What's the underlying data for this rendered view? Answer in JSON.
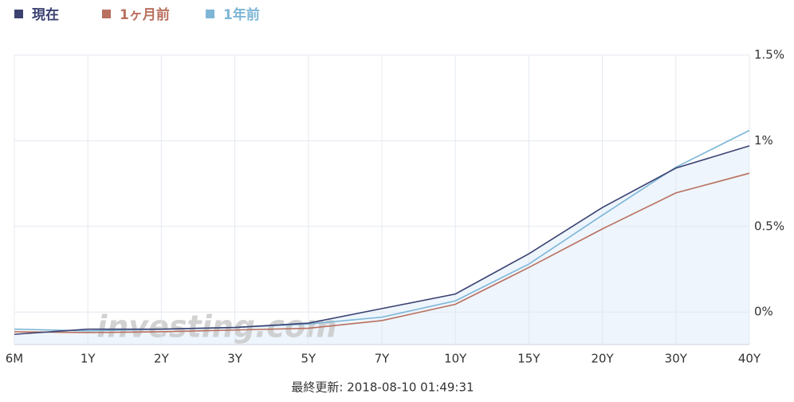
{
  "chart_data": {
    "type": "line",
    "categories": [
      "6M",
      "1Y",
      "2Y",
      "3Y",
      "5Y",
      "7Y",
      "10Y",
      "15Y",
      "20Y",
      "30Y",
      "40Y"
    ],
    "series": [
      {
        "name": "現在",
        "color": "#3b4272",
        "fill": "#eef5fc",
        "values": [
          -0.13,
          -0.1,
          -0.1,
          -0.09,
          -0.065,
          0.02,
          0.105,
          0.34,
          0.61,
          0.84,
          0.97
        ]
      },
      {
        "name": "1ヶ月前",
        "color": "#b9705f",
        "values": [
          -0.115,
          -0.12,
          -0.115,
          -0.105,
          -0.095,
          -0.05,
          0.045,
          0.26,
          0.485,
          0.695,
          0.81
        ]
      },
      {
        "name": "1年前",
        "color": "#7db6d6",
        "values": [
          -0.1,
          -0.11,
          -0.1,
          -0.09,
          -0.07,
          -0.03,
          0.065,
          0.28,
          0.565,
          0.845,
          1.06
        ]
      }
    ],
    "ylim": [
      -0.19,
      1.5
    ],
    "yticks": [
      {
        "value": 0,
        "label": "0%"
      },
      {
        "value": 0.5,
        "label": "0.5%"
      },
      {
        "value": 1,
        "label": "1%"
      },
      {
        "value": 1.5,
        "label": "1.5%"
      }
    ],
    "grid": true,
    "legend": "top-left",
    "watermark": "investing.com",
    "footer": "最終更新: 2018-08-10 01:49:31"
  }
}
